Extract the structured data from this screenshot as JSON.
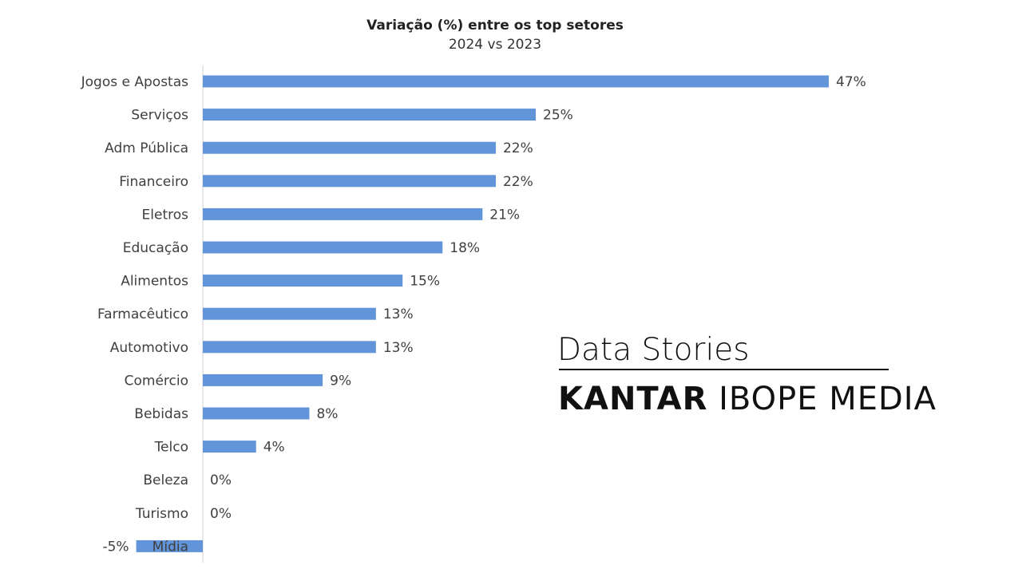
{
  "chart_data": {
    "type": "bar",
    "orientation": "horizontal",
    "title": "Variação (%) entre os top setores",
    "subtitle": "2024 vs 2023",
    "categories": [
      "Jogos e Apostas",
      "Serviços",
      "Adm Pública",
      "Financeiro",
      "Eletros",
      "Educação",
      "Alimentos",
      "Farmacêutico",
      "Automotivo",
      "Comércio",
      "Bebidas",
      "Telco",
      "Beleza",
      "Turismo",
      "Mídia"
    ],
    "values": [
      47,
      25,
      22,
      22,
      21,
      18,
      15,
      13,
      13,
      9,
      8,
      4,
      0,
      0,
      -5
    ],
    "value_labels": [
      "47%",
      "25%",
      "22%",
      "22%",
      "21%",
      "18%",
      "15%",
      "13%",
      "13%",
      "9%",
      "8%",
      "4%",
      "0%",
      "0%",
      "-5%"
    ],
    "xlabel": "",
    "ylabel": "",
    "xlim": [
      -5,
      47
    ],
    "grid": false,
    "bar_color": "#6194d8"
  },
  "branding": {
    "data_stories": "Data Stories",
    "logo_bold": "KANTAR",
    "logo_rest": "IBOPE MEDIA"
  }
}
